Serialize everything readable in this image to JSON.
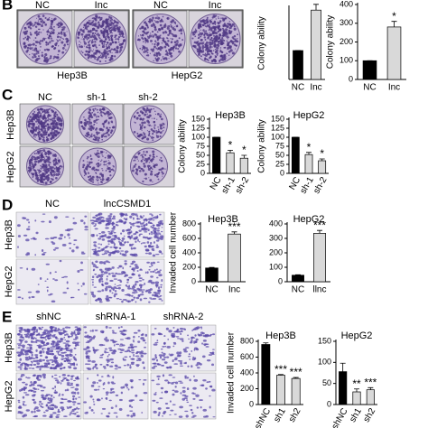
{
  "figure": {
    "panel_b": {
      "letter": "B",
      "columns": [
        "NC",
        "Inc",
        "NC",
        "Inc"
      ],
      "groups": [
        "Hep3B",
        "HepG2"
      ]
    },
    "panel_c": {
      "letter": "C",
      "columns": [
        "NC",
        "sh-1",
        "sh-2"
      ],
      "rows": [
        "Hep3B",
        "HepG2"
      ]
    },
    "panel_d": {
      "letter": "D",
      "columns": [
        "NC",
        "lncCSMD1"
      ],
      "rows": [
        "Hep3B",
        "HepG2"
      ]
    },
    "panel_e": {
      "letter": "E",
      "columns": [
        "shNC",
        "shRNA-1",
        "shRNA-2"
      ],
      "rows": [
        "Hep3B",
        "HepG2"
      ]
    }
  },
  "chart_data": [
    {
      "type": "bar",
      "ylabel": "Colony ability",
      "categories": [
        "NC",
        "Inc"
      ],
      "values": [
        100,
        240
      ],
      "errors": [
        0,
        20
      ],
      "annotations": [
        null,
        "*"
      ],
      "colors": [
        "#000000",
        "#d9d9d9"
      ],
      "ylim": [
        0,
        250
      ],
      "yticks": []
    },
    {
      "type": "bar",
      "ylabel": "Colony ability",
      "categories": [
        "NC",
        "Inc"
      ],
      "values": [
        100,
        280
      ],
      "errors": [
        0,
        30
      ],
      "annotations": [
        null,
        "*"
      ],
      "colors": [
        "#000000",
        "#d9d9d9"
      ],
      "ylim": [
        0,
        400
      ],
      "yticks": [
        0,
        100,
        200,
        300,
        400
      ]
    },
    {
      "type": "bar",
      "title": "Hep3B",
      "ylabel": "Colony ability",
      "categories": [
        "NC",
        "sh-1",
        "sh-2"
      ],
      "values": [
        100,
        57,
        42
      ],
      "errors": [
        0,
        7,
        8
      ],
      "annotations": [
        null,
        "*",
        "*"
      ],
      "colors": [
        "#000000",
        "#d9d9d9",
        "#d9d9d9"
      ],
      "ylim": [
        0,
        150
      ],
      "yticks": [
        0,
        25,
        50,
        75,
        100,
        125,
        150
      ]
    },
    {
      "type": "bar",
      "title": "HepG2",
      "ylabel": "Colony ability",
      "categories": [
        "NC",
        "sh-1",
        "sh-2"
      ],
      "values": [
        100,
        52,
        35
      ],
      "errors": [
        0,
        6,
        5
      ],
      "annotations": [
        null,
        "*",
        "*"
      ],
      "colors": [
        "#000000",
        "#d9d9d9",
        "#d9d9d9"
      ],
      "ylim": [
        0,
        150
      ],
      "yticks": [
        0,
        25,
        50,
        75,
        100,
        125,
        150
      ]
    },
    {
      "type": "bar",
      "title": "Hep3B",
      "ylabel": "Invaded cell number",
      "categories": [
        "NC",
        "Inc"
      ],
      "values": [
        190,
        660
      ],
      "errors": [
        8,
        30
      ],
      "annotations": [
        null,
        "***"
      ],
      "colors": [
        "#000000",
        "#d9d9d9"
      ],
      "ylim": [
        0,
        800
      ],
      "yticks": [
        0,
        200,
        400,
        600,
        800
      ]
    },
    {
      "type": "bar",
      "title": "HepG2",
      "categories": [
        "NC",
        "llnc"
      ],
      "values": [
        45,
        335
      ],
      "errors": [
        3,
        20
      ],
      "annotations": [
        null,
        "***"
      ],
      "colors": [
        "#000000",
        "#d9d9d9"
      ],
      "ylim": [
        0,
        400
      ],
      "yticks": [
        0,
        100,
        200,
        300,
        400
      ]
    },
    {
      "type": "bar",
      "title": "Hep3B",
      "ylabel": "Invaded cell number",
      "categories": [
        "shNC",
        "sh1",
        "sh2"
      ],
      "values": [
        760,
        370,
        330
      ],
      "errors": [
        20,
        10,
        12
      ],
      "annotations": [
        null,
        "***",
        "***"
      ],
      "colors": [
        "#000000",
        "#d9d9d9",
        "#d9d9d9"
      ],
      "ylim": [
        0,
        800
      ],
      "yticks": [
        0,
        200,
        400,
        600,
        800
      ]
    },
    {
      "type": "bar",
      "title": "HepG2",
      "categories": [
        "shNC",
        "sh1",
        "sh2"
      ],
      "values": [
        78,
        30,
        35
      ],
      "errors": [
        20,
        7,
        5
      ],
      "annotations": [
        null,
        "**",
        "***"
      ],
      "colors": [
        "#000000",
        "#d9d9d9",
        "#d9d9d9"
      ],
      "ylim": [
        0,
        150
      ],
      "yticks": [
        0,
        50,
        100,
        150
      ]
    }
  ]
}
